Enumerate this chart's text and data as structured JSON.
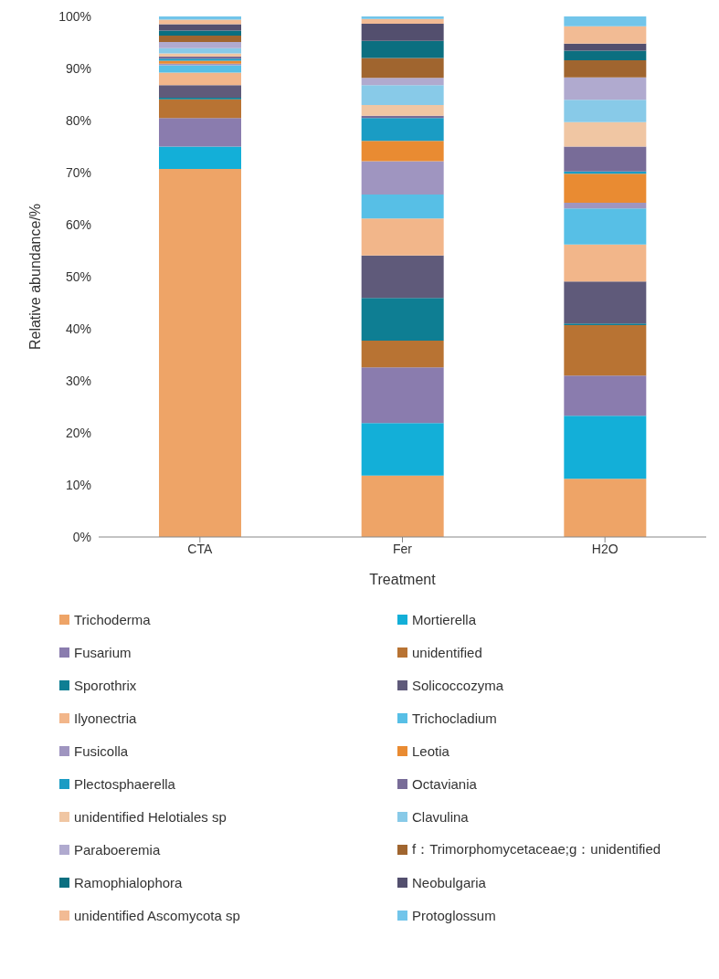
{
  "chart_data": {
    "type": "bar",
    "stacked": true,
    "xlabel": "Treatment",
    "ylabel": "Relative abundance/%",
    "categories": [
      "CTA",
      "Fer",
      "H2O"
    ],
    "ylim": [
      0,
      100
    ],
    "yticks": [
      {
        "value": 0,
        "label": "0%"
      },
      {
        "value": 10,
        "label": "10%"
      },
      {
        "value": 20,
        "label": "20%"
      },
      {
        "value": 30,
        "label": "30%"
      },
      {
        "value": 40,
        "label": "40%"
      },
      {
        "value": 50,
        "label": "50%"
      },
      {
        "value": 60,
        "label": "60%"
      },
      {
        "value": 70,
        "label": "70%"
      },
      {
        "value": 80,
        "label": "80%"
      },
      {
        "value": 90,
        "label": "90%"
      },
      {
        "value": 100,
        "label": "100%"
      }
    ],
    "grid": false,
    "legend": "bottom",
    "series": [
      {
        "name": "Trichoderma",
        "color": "#eea467",
        "values": [
          70.7,
          11.8,
          11.2
        ]
      },
      {
        "name": "Mortierella",
        "color": "#13afd8",
        "values": [
          4.3,
          10.1,
          12.1
        ]
      },
      {
        "name": "Fusarium",
        "color": "#8a7cae",
        "values": [
          5.5,
          10.7,
          7.7
        ]
      },
      {
        "name": "unidentified",
        "color": "#b87333",
        "values": [
          3.6,
          5.1,
          9.7
        ]
      },
      {
        "name": "Sporothrix",
        "color": "#0e7e93",
        "values": [
          0.3,
          8.2,
          0.3
        ]
      },
      {
        "name": "Solicoccozyma",
        "color": "#5f5a7a",
        "values": [
          2.4,
          8.2,
          8.1
        ]
      },
      {
        "name": "Ilyonectria",
        "color": "#f2b68a",
        "values": [
          2.4,
          7.1,
          7.1
        ]
      },
      {
        "name": "Trichocladium",
        "color": "#57bfe6",
        "values": [
          1.4,
          4.6,
          6.9
        ]
      },
      {
        "name": "Fusicolla",
        "color": "#9f95c0",
        "values": [
          0.3,
          6.4,
          1.1
        ]
      },
      {
        "name": "Leotia",
        "color": "#e98b32",
        "values": [
          0.6,
          3.9,
          5.6
        ]
      },
      {
        "name": "Plectosphaerella",
        "color": "#1a9cc4",
        "values": [
          0.4,
          4.4,
          0.4
        ]
      },
      {
        "name": "Octaviania",
        "color": "#786c98",
        "values": [
          0.4,
          0.4,
          4.8
        ]
      },
      {
        "name": "unidentified Helotiales sp",
        "color": "#f0c6a3",
        "values": [
          0.6,
          2.1,
          4.7
        ]
      },
      {
        "name": "Clavulina",
        "color": "#88cae8",
        "values": [
          1.0,
          3.8,
          4.3
        ]
      },
      {
        "name": "Paraboeremia",
        "color": "#b0aacf",
        "values": [
          1.2,
          1.4,
          4.3
        ]
      },
      {
        "name": "f：Trimorphomycetaceae;g：unidentified",
        "color": "#a0652f",
        "values": [
          1.2,
          3.8,
          3.3
        ]
      },
      {
        "name": "Ramophialophora",
        "color": "#0b6f80",
        "values": [
          1.0,
          3.3,
          1.8
        ]
      },
      {
        "name": "Neobulgaria",
        "color": "#534f6e",
        "values": [
          1.2,
          3.3,
          1.4
        ]
      },
      {
        "name": "unidentified Ascomycota sp",
        "color": "#f2bb94",
        "values": [
          0.9,
          0.9,
          3.3
        ]
      },
      {
        "name": "Protoglossum",
        "color": "#72c5ea",
        "values": [
          0.8,
          0.9,
          2.3
        ]
      }
    ]
  }
}
